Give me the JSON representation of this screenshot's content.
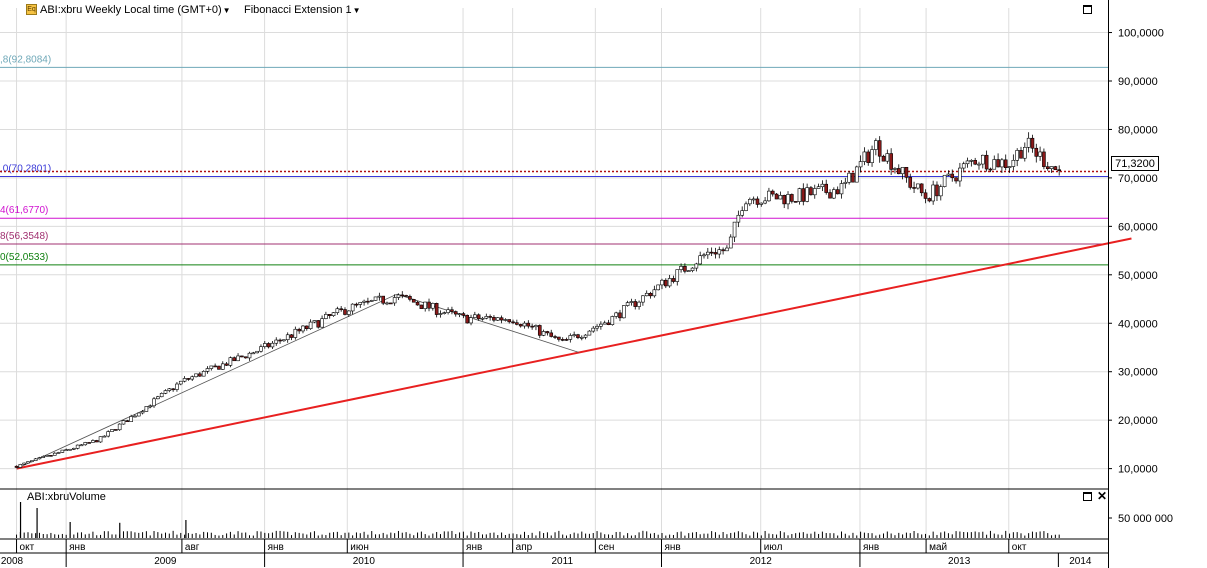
{
  "header": {
    "symbol_label": "ABI:xbru Weekly Local time (GMT+0)",
    "study_label": "Fibonacci Extension 1",
    "symbol_icon": "chart-type-icon"
  },
  "current_price_label": "71,3200",
  "fib_levels": [
    {
      "label": ",8(92,8084)",
      "value": 92.8084,
      "color": "#6fa8b8"
    },
    {
      "label": ",0(70,2801)",
      "value": 70.2801,
      "color": "#3a3ad8"
    },
    {
      "label": "4(61,6770)",
      "value": 61.677,
      "color": "#d010d0"
    },
    {
      "label": "8(56,3548)",
      "value": 56.3548,
      "color": "#a03070"
    },
    {
      "label": "0(52,0533)",
      "value": 52.0533,
      "color": "#108010"
    }
  ],
  "current_price_value": 71.32,
  "chart_data": [
    {
      "type": "candlestick",
      "title": "ABI:xbru Weekly",
      "y_axis": {
        "ticks": [
          "100,0000",
          "90,0000",
          "80,0000",
          "70,0000",
          "60,0000",
          "50,0000",
          "40,0000",
          "30,0000",
          "20,0000",
          "10,0000"
        ],
        "tick_values": [
          100,
          90,
          80,
          70,
          60,
          50,
          40,
          30,
          20,
          10
        ],
        "range": [
          6,
          103
        ],
        "position": "right"
      },
      "grid": true,
      "anchors": [
        {
          "date": "2008-10",
          "close": 10.5
        },
        {
          "date": "2009-03",
          "close": 16
        },
        {
          "date": "2009-08",
          "close": 28
        },
        {
          "date": "2010-01",
          "close": 35
        },
        {
          "date": "2010-06",
          "close": 43
        },
        {
          "date": "2010-09",
          "close": 45.5
        },
        {
          "date": "2011-01",
          "close": 41
        },
        {
          "date": "2011-04",
          "close": 41
        },
        {
          "date": "2011-07",
          "close": 36
        },
        {
          "date": "2011-10",
          "close": 41
        },
        {
          "date": "2012-01",
          "close": 48
        },
        {
          "date": "2012-04",
          "close": 55
        },
        {
          "date": "2012-05",
          "close": 55
        },
        {
          "date": "2012-06",
          "close": 66
        },
        {
          "date": "2012-09",
          "close": 66
        },
        {
          "date": "2012-12",
          "close": 68
        },
        {
          "date": "2013-02",
          "close": 77
        },
        {
          "date": "2013-04",
          "close": 69
        },
        {
          "date": "2013-05",
          "close": 66
        },
        {
          "date": "2013-08",
          "close": 74
        },
        {
          "date": "2013-10",
          "close": 73
        },
        {
          "date": "2013-11",
          "close": 77
        },
        {
          "date": "2014-01",
          "close": 71.32
        }
      ],
      "trend_line": {
        "from": {
          "date": "2008-10",
          "value": 10
        },
        "to": {
          "date": "2014-03",
          "value": 57.5
        },
        "color": "#e82020"
      },
      "fib_lines": [
        {
          "from": {
            "date": "2008-10",
            "value": 10
          },
          "to": {
            "date": "2010-09",
            "value": 46
          }
        },
        {
          "from": {
            "date": "2010-09",
            "value": 46
          },
          "to": {
            "date": "2011-08",
            "value": 34
          }
        }
      ]
    },
    {
      "type": "bar",
      "title": "ABI:xbruVolume",
      "y_axis": {
        "ticks": [
          "50 000 000"
        ],
        "tick_values": [
          50000000
        ],
        "range": [
          0,
          90000000
        ],
        "position": "right"
      },
      "spikes": [
        {
          "date": "2008-10",
          "value": 90000000
        },
        {
          "date": "2008-11",
          "value": 75000000
        },
        {
          "date": "2009-01",
          "value": 40000000
        },
        {
          "date": "2009-04",
          "value": 38000000
        },
        {
          "date": "2009-08",
          "value": 45000000
        }
      ],
      "typical_value": 12000000
    }
  ],
  "time_axis": {
    "months": [
      {
        "label": "окт",
        "date": "2008-10"
      },
      {
        "label": "янв",
        "date": "2009-01"
      },
      {
        "label": "авг",
        "date": "2009-08"
      },
      {
        "label": "янв",
        "date": "2010-01"
      },
      {
        "label": "июн",
        "date": "2010-06"
      },
      {
        "label": "янв",
        "date": "2011-01"
      },
      {
        "label": "апр",
        "date": "2011-04"
      },
      {
        "label": "сен",
        "date": "2011-09"
      },
      {
        "label": "янв",
        "date": "2012-01"
      },
      {
        "label": "июл",
        "date": "2012-07"
      },
      {
        "label": "янв",
        "date": "2013-01"
      },
      {
        "label": "май",
        "date": "2013-05"
      },
      {
        "label": "окт",
        "date": "2013-10"
      }
    ],
    "years": [
      {
        "label": "2008",
        "date": "2008-01"
      },
      {
        "label": "2009",
        "date": "2009-01"
      },
      {
        "label": "2010",
        "date": "2010-01"
      },
      {
        "label": "2011",
        "date": "2011-01"
      },
      {
        "label": "2012",
        "date": "2012-01"
      },
      {
        "label": "2013",
        "date": "2013-01"
      },
      {
        "label": "2014",
        "date": "2014-01"
      }
    ],
    "range": [
      "2008-09",
      "2014-04"
    ]
  }
}
